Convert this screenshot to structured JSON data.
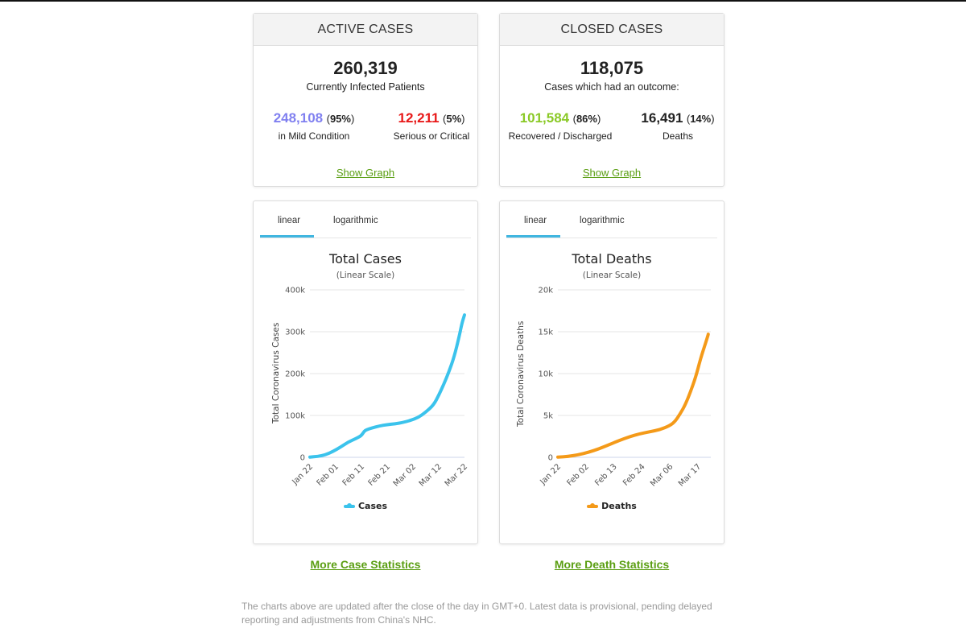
{
  "colors": {
    "mild": "#8080f0",
    "serious": "#e81818",
    "recovered": "#8ac926",
    "link": "#5a9e12",
    "cases_line": "#3bc3ec",
    "deaths_line": "#f49a19"
  },
  "active": {
    "title": "ACTIVE CASES",
    "total": "260,319",
    "subtitle": "Currently Infected Patients",
    "mild_num": "248,108",
    "mild_pct": "95%",
    "mild_label": "in Mild Condition",
    "serious_num": "12,211",
    "serious_pct": "5%",
    "serious_label": "Serious or Critical",
    "link": "Show Graph"
  },
  "closed": {
    "title": "CLOSED CASES",
    "total": "118,075",
    "subtitle": "Cases which had an outcome:",
    "recovered_num": "101,584",
    "recovered_pct": "86%",
    "recovered_label": "Recovered / Discharged",
    "deaths_num": "16,491",
    "deaths_pct": "14%",
    "deaths_label": "Deaths",
    "link": "Show Graph"
  },
  "tabs": {
    "linear": "linear",
    "log": "logarithmic"
  },
  "chart_data": [
    {
      "type": "line",
      "title": "Total Cases",
      "subtitle": "(Linear Scale)",
      "ylabel": "Total Coronavirus Cases",
      "ylim": [
        0,
        400000
      ],
      "yticks": [
        0,
        100000,
        200000,
        300000,
        400000
      ],
      "ytick_labels": [
        "0",
        "100k",
        "200k",
        "300k",
        "400k"
      ],
      "x_tick_labels": [
        "Jan 22",
        "Feb 01",
        "Feb 11",
        "Feb 21",
        "Mar 02",
        "Mar 12",
        "Mar 22"
      ],
      "x_tick_days": [
        0,
        10,
        20,
        30,
        40,
        50,
        60
      ],
      "legend_position": "bottom",
      "grid": true,
      "series": [
        {
          "name": "Cases",
          "x": [
            0,
            3,
            6,
            9,
            12,
            15,
            18,
            20,
            21,
            22,
            24,
            27,
            30,
            33,
            36,
            39,
            42,
            45,
            48,
            50,
            52,
            54,
            56,
            58,
            59,
            60
          ],
          "values": [
            580,
            2000,
            6000,
            14000,
            25000,
            37000,
            45000,
            52000,
            62000,
            66000,
            70000,
            75000,
            78000,
            80000,
            83000,
            88000,
            95000,
            108000,
            125000,
            148000,
            175000,
            205000,
            240000,
            290000,
            320000,
            340000
          ]
        }
      ]
    },
    {
      "type": "line",
      "title": "Total Deaths",
      "subtitle": "(Linear Scale)",
      "ylabel": "Total Coronavirus Deaths",
      "ylim": [
        0,
        20000
      ],
      "yticks": [
        0,
        5000,
        10000,
        15000,
        20000
      ],
      "ytick_labels": [
        "0",
        "5k",
        "10k",
        "15k",
        "20k"
      ],
      "x_tick_labels": [
        "Jan 22",
        "Feb 02",
        "Feb 13",
        "Feb 24",
        "Mar 06",
        "Mar 17"
      ],
      "x_tick_days": [
        0,
        11,
        22,
        33,
        44,
        55
      ],
      "legend_position": "bottom",
      "grid": true,
      "series": [
        {
          "name": "Deaths",
          "x": [
            0,
            4,
            8,
            12,
            16,
            20,
            24,
            28,
            32,
            36,
            40,
            44,
            46,
            48,
            50,
            52,
            54,
            56,
            58,
            59
          ],
          "values": [
            17,
            100,
            300,
            600,
            1000,
            1500,
            2000,
            2450,
            2800,
            3050,
            3300,
            3800,
            4300,
            5200,
            6300,
            7800,
            9500,
            11800,
            13700,
            14700
          ]
        }
      ]
    }
  ],
  "more_cases": "More Case Statistics",
  "more_deaths": "More Death Statistics",
  "footnote": "The charts above are updated after the close of the day in GMT+0. Latest data is provisional, pending delayed reporting and adjustments from China's NHC."
}
